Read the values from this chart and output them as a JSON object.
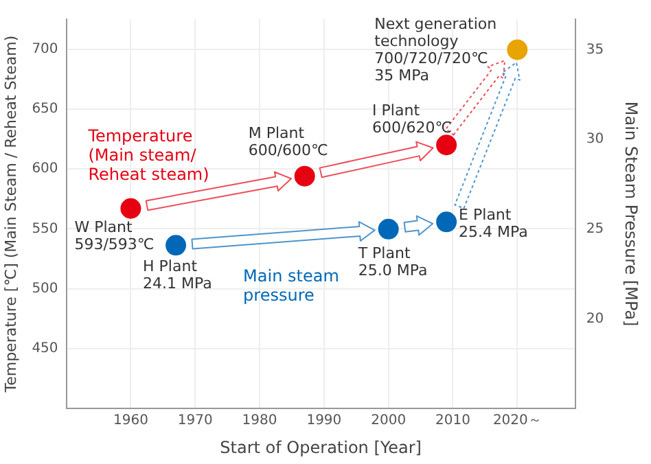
{
  "chart_data": {
    "type": "scatter",
    "xlabel": "Start of Operation [Year]",
    "ylabel": "Temperature [℃] (Main Steam / Reheat Steam)",
    "y2label": "Main Steam Pressure [MPa]",
    "xlim": [
      1950,
      2029
    ],
    "xticks": [
      1960,
      1970,
      1980,
      1990,
      2000,
      2010,
      {
        "value": 2020,
        "label": "2020～"
      }
    ],
    "ylim": [
      400,
      725
    ],
    "yticks": [
      450,
      500,
      550,
      600,
      650,
      700
    ],
    "y2lim": [
      15,
      36.7
    ],
    "y2ticks": [
      20,
      25,
      30,
      35
    ],
    "grid": true,
    "legend": false,
    "marker": "circle",
    "series": [
      {
        "name": "Temperature\n(Main steam/\nReheat steam)",
        "color": "#e60012",
        "x": [
          1960,
          1987,
          2009
        ],
        "values": [
          567,
          594,
          620
        ]
      },
      {
        "name": "Main steam\npressure",
        "color": "#0068b7",
        "axis": "y2",
        "x": [
          1967,
          2000,
          2009
        ],
        "values": [
          24.1,
          25.0,
          25.4
        ]
      },
      {
        "color": "#e8a400",
        "axis": "y2",
        "x": [
          2020
        ],
        "values": [
          35
        ]
      }
    ],
    "annotations": [
      {
        "text": "W Plant\n593/593℃",
        "x": 1960,
        "y": 567
      },
      {
        "text": "M Plant\n600/600℃",
        "x": 1987,
        "y": 594
      },
      {
        "text": "I Plant\n600/620℃",
        "x": 2009,
        "y": 620
      },
      {
        "text": "H Plant\n24.1 MPa",
        "x": 1967,
        "y": 537
      },
      {
        "text": "T Plant\n25.0 MPa",
        "x": 2000,
        "y": 550
      },
      {
        "text": "E Plant\n25.4 MPa",
        "x": 2009,
        "y": 559
      },
      {
        "text": "Next generation\ntechnology\n700/720/720℃\n35 MPa",
        "x": 2020,
        "y": 700
      }
    ]
  }
}
